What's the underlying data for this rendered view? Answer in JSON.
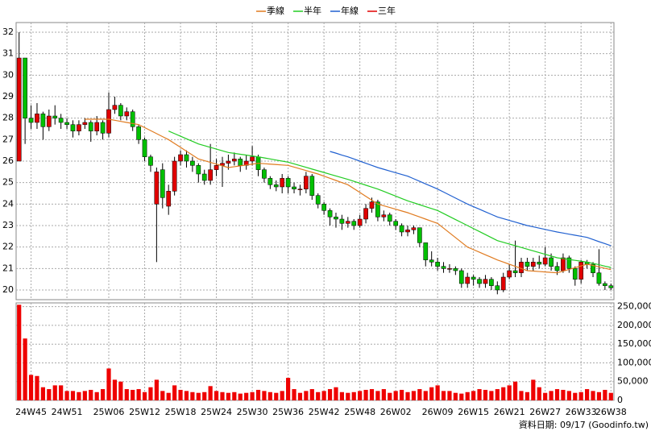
{
  "chart_data": {
    "type": "candlestick",
    "legend": [
      "季線",
      "半年",
      "年線",
      "三年"
    ],
    "footer": "資料日期: 09/17 (Goodinfo.tw)",
    "categories": [
      null,
      null,
      "24W45",
      null,
      null,
      null,
      null,
      null,
      "24W51",
      null,
      null,
      null,
      null,
      null,
      null,
      "25W06",
      null,
      null,
      null,
      null,
      null,
      "25W12",
      null,
      null,
      null,
      null,
      null,
      "25W18",
      null,
      null,
      null,
      null,
      null,
      "25W24",
      null,
      null,
      null,
      null,
      null,
      "25W30",
      null,
      null,
      null,
      null,
      null,
      "25W36",
      null,
      null,
      null,
      null,
      null,
      "25W42",
      null,
      null,
      null,
      null,
      null,
      "25W48",
      null,
      null,
      null,
      null,
      null,
      "26W02",
      null,
      null,
      null,
      null,
      null,
      null,
      "26W09",
      null,
      null,
      null,
      null,
      null,
      "26W15",
      null,
      null,
      null,
      null,
      null,
      "26W21",
      null,
      null,
      null,
      null,
      null,
      "26W27",
      null,
      null,
      null,
      null,
      null,
      "26W33",
      null,
      null,
      null,
      null,
      "26W38"
    ],
    "open": [
      26.0,
      30.8,
      28.0,
      27.8,
      28.2,
      27.6,
      28.1,
      28.0,
      27.8,
      27.7,
      27.4,
      27.7,
      27.8,
      27.4,
      27.8,
      27.3,
      28.4,
      28.6,
      28.1,
      28.3,
      27.6,
      27.0,
      26.2,
      24.0,
      25.6,
      23.9,
      24.6,
      26.0,
      26.3,
      26.0,
      25.8,
      25.4,
      25.1,
      25.6,
      25.8,
      25.9,
      26.0,
      26.1,
      25.8,
      26.0,
      26.2,
      25.6,
      25.2,
      24.9,
      24.8,
      25.2,
      24.8,
      24.7,
      24.7,
      25.3,
      24.4,
      24.0,
      23.7,
      23.4,
      23.3,
      23.1,
      23.2,
      23.0,
      23.3,
      23.8,
      24.1,
      23.4,
      23.5,
      23.2,
      23.0,
      22.7,
      22.8,
      22.9,
      22.2,
      21.4,
      21.3,
      21.1,
      21.0,
      21.0,
      20.9,
      20.3,
      20.6,
      20.5,
      20.3,
      20.5,
      20.2,
      20.0,
      20.6,
      20.9,
      20.8,
      21.3,
      21.1,
      21.3,
      21.2,
      21.5,
      21.1,
      20.9,
      21.5,
      21.0,
      20.5,
      21.3,
      21.2,
      20.8,
      20.3,
      20.2
    ],
    "high": [
      32.0,
      30.8,
      28.6,
      28.7,
      28.3,
      28.4,
      28.6,
      28.2,
      28.0,
      27.9,
      27.9,
      28.0,
      27.9,
      28.1,
      27.9,
      29.2,
      29.0,
      28.7,
      28.5,
      28.4,
      27.7,
      27.1,
      26.3,
      25.7,
      25.9,
      24.9,
      26.2,
      26.5,
      26.5,
      26.2,
      25.9,
      25.6,
      26.8,
      26.1,
      26.2,
      26.3,
      26.4,
      26.2,
      26.3,
      26.7,
      26.3,
      25.7,
      25.3,
      25.1,
      25.4,
      25.3,
      25.0,
      24.9,
      25.5,
      25.4,
      24.5,
      24.1,
      23.8,
      23.6,
      23.5,
      23.4,
      23.3,
      23.5,
      24.0,
      24.3,
      24.2,
      23.7,
      23.6,
      23.3,
      23.1,
      23.0,
      23.0,
      22.9,
      22.2,
      21.8,
      21.5,
      21.3,
      21.2,
      21.1,
      21.0,
      20.8,
      20.7,
      20.6,
      20.7,
      20.6,
      20.4,
      20.8,
      21.2,
      22.3,
      21.5,
      21.5,
      21.5,
      21.6,
      22.0,
      21.7,
      21.3,
      21.7,
      21.6,
      21.1,
      21.4,
      21.4,
      21.3,
      21.9,
      20.4,
      20.3
    ],
    "low": [
      26.0,
      26.8,
      27.5,
      27.5,
      27.0,
      27.4,
      27.7,
      27.5,
      27.5,
      27.1,
      27.2,
      27.5,
      26.9,
      27.2,
      27.0,
      27.1,
      28.2,
      27.9,
      27.9,
      27.4,
      26.8,
      26.0,
      25.5,
      21.3,
      23.8,
      23.5,
      24.4,
      25.8,
      25.7,
      25.5,
      25.0,
      24.9,
      24.9,
      25.3,
      24.8,
      25.6,
      25.8,
      25.5,
      25.6,
      25.8,
      25.3,
      25.0,
      24.7,
      24.6,
      24.5,
      24.5,
      24.5,
      24.4,
      24.5,
      24.2,
      23.8,
      23.5,
      23.0,
      22.9,
      22.8,
      22.9,
      22.8,
      22.9,
      23.1,
      23.6,
      23.2,
      23.2,
      23.0,
      22.8,
      22.5,
      22.5,
      22.6,
      22.0,
      21.1,
      21.1,
      20.9,
      20.8,
      20.8,
      20.7,
      20.1,
      20.1,
      20.2,
      20.1,
      20.1,
      20.0,
      19.8,
      19.9,
      20.5,
      20.6,
      20.6,
      20.9,
      20.9,
      21.0,
      21.1,
      20.9,
      20.7,
      20.8,
      20.8,
      20.2,
      20.3,
      21.0,
      20.6,
      20.2,
      20.0,
      20.0
    ],
    "close": [
      30.8,
      28.0,
      27.8,
      28.2,
      27.6,
      28.1,
      28.0,
      27.8,
      27.7,
      27.4,
      27.7,
      27.8,
      27.4,
      27.8,
      27.3,
      28.4,
      28.6,
      28.1,
      28.3,
      27.6,
      27.0,
      26.2,
      25.8,
      25.5,
      24.3,
      24.6,
      26.0,
      26.3,
      26.0,
      25.8,
      25.4,
      25.1,
      25.6,
      25.8,
      25.9,
      26.0,
      26.1,
      25.8,
      26.0,
      26.2,
      25.6,
      25.2,
      24.9,
      24.8,
      25.2,
      24.8,
      24.7,
      24.7,
      25.3,
      24.4,
      24.0,
      23.7,
      23.4,
      23.3,
      23.1,
      23.2,
      23.0,
      23.3,
      23.8,
      24.1,
      23.4,
      23.5,
      23.2,
      23.0,
      22.7,
      22.8,
      22.9,
      22.2,
      21.4,
      21.3,
      21.1,
      21.0,
      21.0,
      20.9,
      20.3,
      20.6,
      20.5,
      20.3,
      20.5,
      20.2,
      20.0,
      20.6,
      20.9,
      20.8,
      21.3,
      21.1,
      21.3,
      21.2,
      21.5,
      21.1,
      20.9,
      21.5,
      21.0,
      20.5,
      21.3,
      21.2,
      20.8,
      20.3,
      20.2,
      20.1
    ],
    "volume": [
      255000,
      165000,
      68000,
      65000,
      35000,
      30000,
      40000,
      40000,
      25000,
      25000,
      22000,
      25000,
      28000,
      22000,
      30000,
      85000,
      55000,
      50000,
      30000,
      28000,
      30000,
      22000,
      35000,
      55000,
      25000,
      20000,
      40000,
      28000,
      25000,
      22000,
      20000,
      22000,
      38000,
      25000,
      22000,
      20000,
      22000,
      18000,
      20000,
      22000,
      28000,
      25000,
      22000,
      20000,
      25000,
      60000,
      30000,
      20000,
      25000,
      30000,
      22000,
      25000,
      30000,
      35000,
      22000,
      20000,
      22000,
      25000,
      28000,
      30000,
      25000,
      30000,
      20000,
      25000,
      28000,
      22000,
      25000,
      30000,
      25000,
      35000,
      40000,
      25000,
      25000,
      20000,
      18000,
      22000,
      25000,
      30000,
      28000,
      25000,
      30000,
      35000,
      40000,
      50000,
      25000,
      22000,
      55000,
      35000,
      20000,
      25000,
      30000,
      28000,
      25000,
      20000,
      22000,
      30000,
      25000,
      22000,
      28000,
      20000
    ],
    "up_color": "#e00000",
    "down_color": "#00c000",
    "volume_color": "#ee0000",
    "series": [
      {
        "name": "季線",
        "color": "#e07b20",
        "values": [
          null,
          null,
          null,
          null,
          null,
          null,
          null,
          null,
          null,
          null,
          null,
          27.95,
          27.95,
          27.95,
          27.95,
          27.95,
          27.9,
          27.85,
          27.8,
          27.75,
          27.7,
          27.56,
          27.42,
          27.28,
          27.14,
          27.0,
          26.82,
          26.64,
          26.46,
          26.28,
          26.1,
          26.02,
          25.94,
          25.86,
          25.78,
          25.7,
          25.74,
          25.78,
          25.82,
          25.86,
          25.9,
          25.88,
          25.86,
          25.84,
          25.82,
          25.8,
          25.72,
          25.64,
          25.56,
          25.48,
          25.4,
          25.3,
          25.2,
          25.1,
          25.0,
          24.9,
          24.72,
          24.54,
          24.36,
          24.18,
          24.0,
          23.92,
          23.84,
          23.76,
          23.68,
          23.6,
          23.5,
          23.4,
          23.3,
          23.2,
          23.1,
          22.88,
          22.66,
          22.44,
          22.22,
          22.0,
          21.88,
          21.76,
          21.64,
          21.52,
          21.4,
          21.3,
          21.2,
          21.1,
          21.0,
          20.9,
          20.88,
          20.86,
          20.84,
          20.82,
          20.8,
          20.88,
          20.96,
          21.04,
          21.12,
          21.2,
          21.14,
          21.08,
          21.01,
          20.95
        ]
      },
      {
        "name": "半年",
        "color": "#22cc22",
        "values": [
          null,
          null,
          null,
          null,
          null,
          null,
          null,
          null,
          null,
          null,
          null,
          null,
          null,
          null,
          null,
          null,
          null,
          null,
          null,
          null,
          null,
          null,
          null,
          null,
          null,
          27.4,
          27.28,
          27.16,
          27.04,
          26.92,
          26.8,
          26.72,
          26.64,
          26.56,
          26.48,
          26.4,
          26.36,
          26.32,
          26.28,
          26.24,
          26.2,
          26.15,
          26.1,
          26.05,
          26.0,
          25.95,
          25.87,
          25.79,
          25.71,
          25.63,
          25.55,
          25.47,
          25.39,
          25.31,
          25.23,
          25.15,
          25.06,
          24.97,
          24.88,
          24.79,
          24.7,
          24.59,
          24.48,
          24.37,
          24.26,
          24.15,
          24.06,
          23.97,
          23.88,
          23.79,
          23.7,
          23.56,
          23.42,
          23.28,
          23.14,
          23.0,
          22.86,
          22.72,
          22.58,
          22.44,
          22.3,
          22.22,
          22.14,
          22.06,
          21.98,
          21.9,
          21.82,
          21.74,
          21.66,
          21.58,
          21.5,
          21.46,
          21.42,
          21.38,
          21.34,
          21.3,
          21.24,
          21.18,
          21.11,
          21.05
        ]
      },
      {
        "name": "年線",
        "color": "#2060d0",
        "values": [
          null,
          null,
          null,
          null,
          null,
          null,
          null,
          null,
          null,
          null,
          null,
          null,
          null,
          null,
          null,
          null,
          null,
          null,
          null,
          null,
          null,
          null,
          null,
          null,
          null,
          null,
          null,
          null,
          null,
          null,
          null,
          null,
          null,
          null,
          null,
          null,
          null,
          null,
          null,
          null,
          null,
          null,
          null,
          null,
          null,
          null,
          null,
          null,
          null,
          null,
          null,
          null,
          26.45,
          26.37,
          26.28,
          26.2,
          26.1,
          26.0,
          25.9,
          25.8,
          25.7,
          25.62,
          25.54,
          25.46,
          25.38,
          25.3,
          25.18,
          25.06,
          24.94,
          24.82,
          24.7,
          24.56,
          24.42,
          24.28,
          24.14,
          24.0,
          23.88,
          23.76,
          23.64,
          23.52,
          23.4,
          23.32,
          23.24,
          23.16,
          23.08,
          23.0,
          22.94,
          22.88,
          22.82,
          22.76,
          22.7,
          22.65,
          22.6,
          22.55,
          22.5,
          22.45,
          22.35,
          22.25,
          22.16,
          22.06
        ]
      },
      {
        "name": "三年",
        "color": "#e00000"
      }
    ],
    "ylim": [
      19.55,
      32.45
    ],
    "yticks": [
      20,
      21,
      22,
      23,
      24,
      25,
      26,
      27,
      28,
      29,
      30,
      31,
      32
    ],
    "y2lim": [
      0,
      260000
    ],
    "y2ticks": [
      0,
      {
        "value": 50000,
        "label": "50,000"
      },
      {
        "value": 100000,
        "label": "100,000"
      },
      {
        "value": 150000,
        "label": "150,000"
      },
      {
        "value": 200000,
        "label": "200,000"
      },
      {
        "value": 250000,
        "label": "250,000"
      }
    ],
    "grid": true
  }
}
